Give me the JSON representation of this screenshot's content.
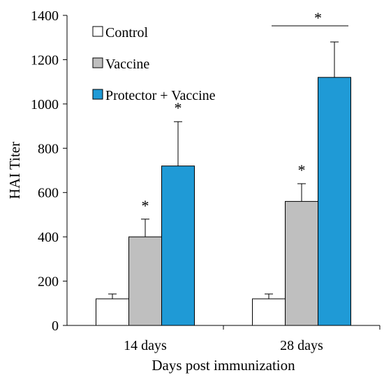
{
  "chart_data": {
    "type": "bar",
    "xlabel": "Days post immunization",
    "ylabel": "HAI Titer",
    "ylim": [
      0,
      1400
    ],
    "yticks": [
      0,
      200,
      400,
      600,
      800,
      1000,
      1200,
      1400
    ],
    "grid": false,
    "legend": "top-left",
    "categories": [
      "14 days",
      "28 days"
    ],
    "series": [
      {
        "name": "Control",
        "color": "#ffffff",
        "values": [
          120,
          120
        ],
        "errors": [
          22,
          22
        ],
        "significance": [
          "",
          ""
        ]
      },
      {
        "name": "Vaccine",
        "color": "#bfbfbf",
        "values": [
          400,
          560
        ],
        "errors": [
          80,
          80
        ],
        "significance": [
          "*",
          "*"
        ]
      },
      {
        "name": "Protector + Vaccine",
        "color": "#1f9ad6",
        "values": [
          720,
          1120
        ],
        "errors": [
          200,
          160
        ],
        "significance": [
          "*",
          ""
        ]
      }
    ],
    "annotations": [
      {
        "text": "*",
        "category": "28 days",
        "type": "bracket",
        "from_series": 1,
        "to_series": 2
      }
    ]
  }
}
